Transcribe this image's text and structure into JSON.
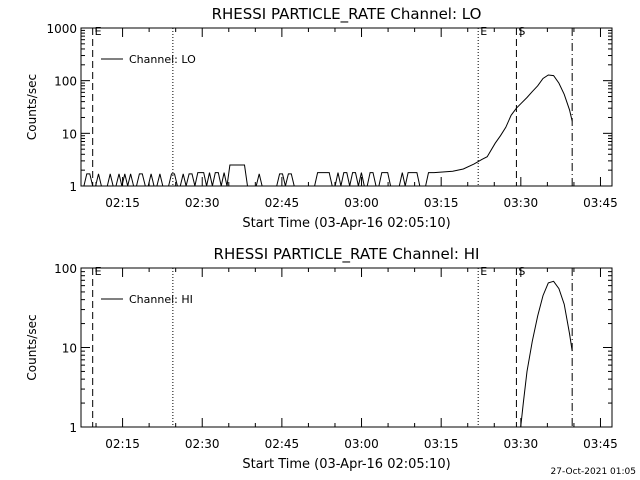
{
  "footer": {
    "timestamp": "27-Oct-2021 01:05"
  },
  "chart_data": [
    {
      "type": "line",
      "title": "RHESSI PARTICLE_RATE Channel: LO",
      "xlabel": "Start Time (03-Apr-16 02:05:10)",
      "ylabel": "Counts/sec",
      "xscale": "time (minutes after 02:05:10)",
      "xlim": [
        2.0,
        102.0
      ],
      "yscale": "log",
      "ylim": [
        1,
        1000
      ],
      "x_ticks": [
        {
          "x": 9.83,
          "label": "02:15"
        },
        {
          "x": 24.83,
          "label": "02:30"
        },
        {
          "x": 39.83,
          "label": "02:45"
        },
        {
          "x": 54.83,
          "label": "03:00"
        },
        {
          "x": 69.83,
          "label": "03:15"
        },
        {
          "x": 84.83,
          "label": "03:30"
        },
        {
          "x": 99.83,
          "label": "03:45"
        }
      ],
      "y_ticks": [
        {
          "y": 1,
          "label": "1"
        },
        {
          "y": 10,
          "label": "10"
        },
        {
          "y": 100,
          "label": "100"
        },
        {
          "y": 1000,
          "label": "1000"
        }
      ],
      "legend": {
        "label": "Channel: LO",
        "position": "top-left"
      },
      "markers": [
        {
          "x": 4.2,
          "style": "dashed",
          "label": "E"
        },
        {
          "x": 19.3,
          "style": "dotted",
          "label": ""
        },
        {
          "x": 76.8,
          "style": "dotted",
          "label": "E"
        },
        {
          "x": 84.0,
          "style": "dashed",
          "label": "S"
        },
        {
          "x": 94.5,
          "style": "dashdot",
          "label": ""
        }
      ],
      "series": [
        {
          "noise": {
            "x_start": 2.0,
            "x_end": 68.5,
            "low": 1,
            "high": 2,
            "high_values": [
              1.7,
              1.8,
              2.5
            ]
          },
          "points": [
            [
              68.5,
              1.8
            ],
            [
              72.0,
              1.9
            ],
            [
              74.0,
              2.1
            ],
            [
              76.0,
              2.6
            ],
            [
              77.5,
              3.2
            ],
            [
              78.5,
              3.6
            ],
            [
              80.0,
              6.5
            ],
            [
              81.0,
              9
            ],
            [
              82.0,
              13
            ],
            [
              83.0,
              22
            ],
            [
              84.0,
              30
            ],
            [
              85.0,
              38
            ],
            [
              86.0,
              48
            ],
            [
              87.0,
              62
            ],
            [
              88.0,
              80
            ],
            [
              89.0,
              110
            ],
            [
              90.0,
              128
            ],
            [
              91.0,
              125
            ],
            [
              92.0,
              90
            ],
            [
              93.0,
              55
            ],
            [
              94.0,
              28
            ],
            [
              94.5,
              17
            ]
          ]
        }
      ]
    },
    {
      "type": "line",
      "title": "RHESSI PARTICLE_RATE Channel: HI",
      "xlabel": "Start Time (03-Apr-16 02:05:10)",
      "ylabel": "Counts/sec",
      "xscale": "time (minutes after 02:05:10)",
      "xlim": [
        2.0,
        102.0
      ],
      "yscale": "log",
      "ylim": [
        1,
        100
      ],
      "x_ticks": [
        {
          "x": 9.83,
          "label": "02:15"
        },
        {
          "x": 24.83,
          "label": "02:30"
        },
        {
          "x": 39.83,
          "label": "02:45"
        },
        {
          "x": 54.83,
          "label": "03:00"
        },
        {
          "x": 69.83,
          "label": "03:15"
        },
        {
          "x": 84.83,
          "label": "03:30"
        },
        {
          "x": 99.83,
          "label": "03:45"
        }
      ],
      "y_ticks": [
        {
          "y": 1,
          "label": "1"
        },
        {
          "y": 10,
          "label": "10"
        },
        {
          "y": 100,
          "label": "100"
        }
      ],
      "legend": {
        "label": "Channel: HI",
        "position": "top-left"
      },
      "markers": [
        {
          "x": 4.2,
          "style": "dashed",
          "label": "E"
        },
        {
          "x": 19.3,
          "style": "dotted",
          "label": ""
        },
        {
          "x": 76.8,
          "style": "dotted",
          "label": "E"
        },
        {
          "x": 84.0,
          "style": "dashed",
          "label": "S"
        },
        {
          "x": 94.5,
          "style": "dashdot",
          "label": ""
        }
      ],
      "series": [
        {
          "points": [
            [
              84.8,
              1
            ],
            [
              85.3,
              2
            ],
            [
              86.0,
              5
            ],
            [
              87.0,
              12
            ],
            [
              88.0,
              25
            ],
            [
              89.0,
              45
            ],
            [
              90.0,
              65
            ],
            [
              91.0,
              68
            ],
            [
              92.0,
              55
            ],
            [
              93.0,
              35
            ],
            [
              94.0,
              15
            ],
            [
              94.5,
              9
            ]
          ]
        }
      ]
    }
  ]
}
